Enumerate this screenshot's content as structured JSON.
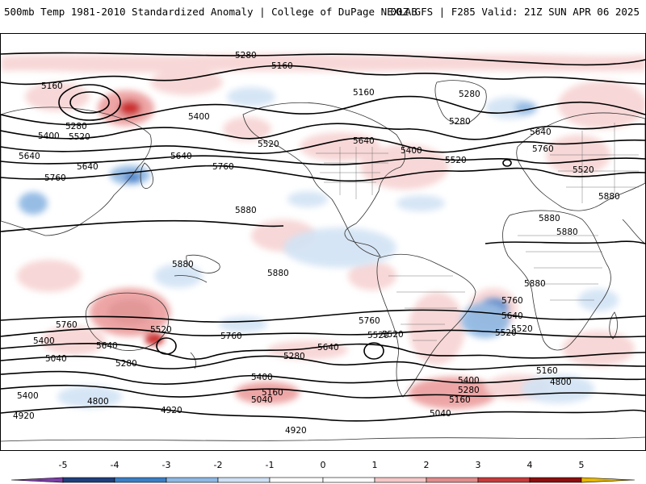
{
  "header": {
    "title_left": "500mb Temp 1981-2010 Standardized Anomaly | College of DuPage NEXLAB",
    "title_right": "00Z GFS | F285 Valid: 21Z SUN APR 06 2025"
  },
  "colorbar": {
    "ticks": [
      "-5",
      "-4",
      "-3",
      "-2",
      "-1",
      "0",
      "1",
      "2",
      "3",
      "4",
      "5"
    ],
    "colors": [
      "#7b3fa6",
      "#1f3f7a",
      "#3b7fc4",
      "#8fb8e3",
      "#cfe0f3",
      "#ffffff",
      "#ffffff",
      "#f4c7c7",
      "#e08d8d",
      "#c63b3b",
      "#8b0f0f",
      "#e8b800"
    ]
  },
  "colors": {
    "warm_light": "#f7d3d3",
    "warm_mid": "#ec9c9c",
    "warm_strong": "#c81e1e",
    "cold_light": "#d2e3f4",
    "cold_mid": "#8cb6e2",
    "cold_strong": "#3a78c6",
    "contour": "#000000",
    "coast": "#333333"
  },
  "contour_labels": [
    "5280",
    "5160",
    "5160",
    "5160",
    "5280",
    "5400",
    "5280",
    "5520",
    "5640",
    "5400",
    "5520",
    "5640",
    "5640",
    "5760",
    "5760",
    "5520",
    "5400",
    "5640",
    "5760",
    "5520",
    "5880",
    "5880",
    "5880",
    "5880",
    "5880",
    "5880",
    "5880",
    "5760",
    "5520",
    "5640",
    "5760",
    "5400",
    "5640",
    "5280",
    "5760",
    "5640",
    "5520",
    "5280",
    "5160",
    "5400",
    "5040",
    "5040",
    "4800",
    "4920",
    "4920",
    "4920",
    "5160",
    "5280",
    "5400",
    "5040",
    "4800",
    "5520",
    "5400",
    "5760",
    "5640",
    "5520",
    "5160",
    "5520",
    "5280"
  ]
}
